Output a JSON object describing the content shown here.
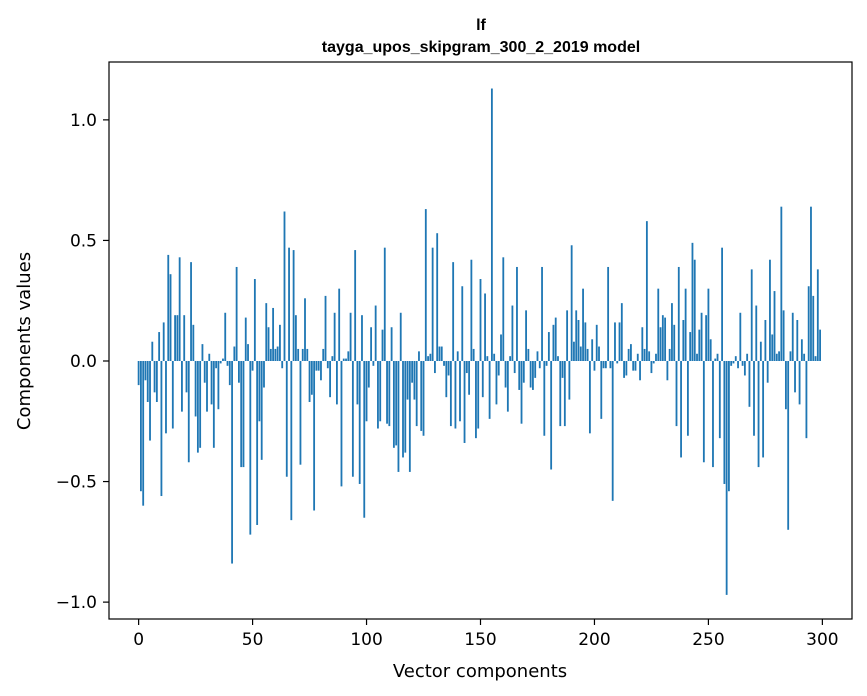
{
  "chart_data": {
    "type": "bar",
    "title": "lf",
    "subtitle": "tayga_upos_skipgram_300_2_2019 model",
    "xlabel": "Vector components",
    "ylabel": "Components values",
    "xlim": [
      -13,
      313
    ],
    "ylim": [
      -1.07,
      1.24
    ],
    "x_ticks": [
      0,
      50,
      100,
      150,
      200,
      250,
      300
    ],
    "x_tick_labels": [
      "0",
      "50",
      "100",
      "150",
      "200",
      "250",
      "300"
    ],
    "y_ticks": [
      -1.0,
      -0.5,
      0.0,
      0.5,
      1.0
    ],
    "y_tick_labels": [
      "−1.0",
      "−0.5",
      "0.0",
      "0.5",
      "1.0"
    ],
    "grid": false,
    "bar_color": "#1f77b4",
    "values": [
      -0.1,
      -0.54,
      -0.6,
      -0.08,
      -0.17,
      -0.33,
      0.08,
      -0.13,
      -0.17,
      0.12,
      -0.56,
      0.16,
      -0.3,
      0.44,
      0.36,
      -0.28,
      0.19,
      0.19,
      0.43,
      -0.21,
      0.19,
      -0.13,
      -0.42,
      0.41,
      0.15,
      -0.23,
      -0.38,
      -0.36,
      0.07,
      -0.09,
      -0.21,
      0.03,
      -0.18,
      -0.36,
      -0.03,
      -0.2,
      -0.01,
      0.01,
      0.2,
      -0.02,
      -0.1,
      -0.84,
      0.06,
      0.39,
      -0.09,
      -0.44,
      -0.44,
      0.18,
      0.07,
      -0.72,
      -0.04,
      0.34,
      -0.68,
      -0.25,
      -0.41,
      -0.11,
      0.24,
      0.14,
      0.05,
      0.22,
      0.05,
      0.06,
      0.15,
      -0.03,
      0.62,
      -0.48,
      0.47,
      -0.66,
      0.46,
      0.19,
      0.05,
      -0.43,
      0.05,
      0.26,
      0.05,
      -0.17,
      -0.14,
      -0.62,
      -0.04,
      -0.04,
      -0.08,
      0.05,
      0.27,
      -0.03,
      -0.15,
      0.02,
      0.2,
      -0.18,
      0.3,
      -0.52,
      0.01,
      0.01,
      0.04,
      0.2,
      -0.48,
      0.46,
      -0.18,
      -0.51,
      0.19,
      -0.65,
      -0.25,
      -0.11,
      0.14,
      -0.02,
      0.23,
      -0.28,
      -0.25,
      0.13,
      0.47,
      -0.26,
      -0.27,
      0.14,
      -0.36,
      -0.35,
      -0.46,
      0.2,
      -0.4,
      -0.38,
      -0.16,
      -0.46,
      -0.09,
      -0.16,
      -0.27,
      0.04,
      -0.29,
      -0.31,
      0.63,
      0.02,
      0.03,
      0.47,
      -0.05,
      0.53,
      0.06,
      0.06,
      -0.02,
      -0.15,
      -0.06,
      -0.27,
      0.41,
      -0.28,
      0.04,
      -0.25,
      0.31,
      -0.34,
      -0.05,
      -0.14,
      0.42,
      0.05,
      -0.32,
      -0.28,
      0.34,
      -0.15,
      0.28,
      0.02,
      -0.24,
      1.13,
      0.03,
      -0.18,
      -0.06,
      0.11,
      0.43,
      -0.11,
      -0.21,
      0.02,
      0.23,
      -0.05,
      0.39,
      -0.12,
      -0.26,
      -0.09,
      0.21,
      0.05,
      -0.11,
      -0.12,
      -0.07,
      0.04,
      -0.03,
      0.39,
      -0.31,
      -0.02,
      0.12,
      -0.45,
      0.15,
      0.18,
      0.02,
      -0.27,
      -0.07,
      -0.27,
      0.21,
      -0.16,
      0.48,
      0.08,
      0.21,
      0.17,
      0.06,
      0.3,
      0.16,
      0.05,
      -0.3,
      0.09,
      -0.04,
      0.15,
      0.06,
      -0.24,
      -0.03,
      -0.03,
      0.39,
      -0.03,
      -0.58,
      0.16,
      -0.01,
      0.16,
      0.24,
      -0.07,
      -0.06,
      0.05,
      0.07,
      -0.04,
      -0.04,
      0.03,
      -0.08,
      0.14,
      0.05,
      0.58,
      0.04,
      -0.05,
      -0.01,
      0.03,
      0.3,
      0.14,
      0.19,
      0.18,
      -0.08,
      0.05,
      0.24,
      0.15,
      -0.27,
      0.39,
      -0.4,
      0.17,
      0.3,
      -0.31,
      0.12,
      0.49,
      0.42,
      0.03,
      0.13,
      0.2,
      -0.42,
      0.19,
      0.3,
      0.09,
      -0.44,
      0.01,
      0.03,
      -0.32,
      0.47,
      -0.51,
      -0.97,
      -0.54,
      -0.02,
      -0.01,
      0.02,
      -0.03,
      0.2,
      -0.02,
      -0.06,
      0.03,
      -0.19,
      0.38,
      -0.31,
      0.23,
      -0.44,
      0.08,
      -0.4,
      0.17,
      -0.09,
      0.42,
      0.11,
      0.29,
      0.03,
      0.04,
      0.64,
      0.21,
      -0.2,
      -0.7,
      0.04,
      0.2,
      -0.13,
      0.17,
      -0.18,
      0.09,
      0.03,
      -0.32,
      0.31,
      0.64,
      0.27,
      0.02,
      0.38,
      0.13
    ]
  }
}
